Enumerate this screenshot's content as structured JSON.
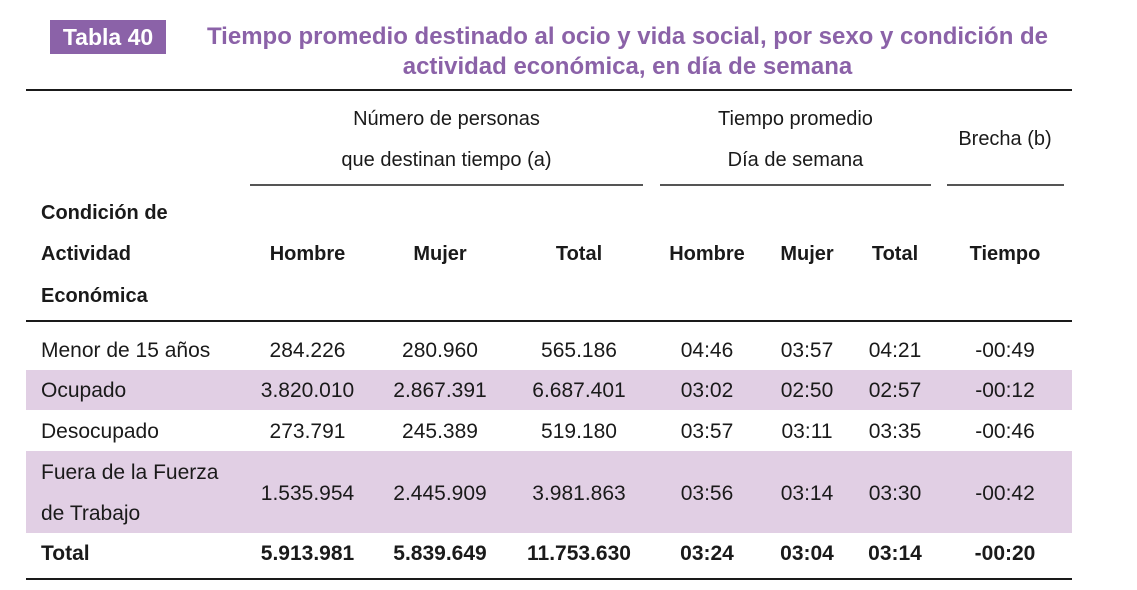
{
  "tag": "Tabla 40",
  "title": {
    "line1": "Tiempo promedio destinado al ocio y vida social, por sexo y condición de",
    "line2": "actividad económica, en día de semana"
  },
  "groups": {
    "personas": {
      "line1": "Número de personas",
      "line2": "que destinan tiempo (a)"
    },
    "tiempo": {
      "line1": "Tiempo promedio",
      "line2": "Día de semana"
    },
    "brecha": "Brecha (b)"
  },
  "columns": {
    "condicion": [
      "Condición de",
      "Actividad",
      "Económica"
    ],
    "hombre": "Hombre",
    "mujer": "Mujer",
    "total": "Total",
    "t_hombre": "Hombre",
    "t_mujer": "Mujer",
    "t_total": "Total",
    "tiempo": "Tiempo"
  },
  "rows": [
    {
      "label": [
        "Menor de 15 años"
      ],
      "hombre": "284.226",
      "mujer": "280.960",
      "total": "565.186",
      "t_hombre": "04:46",
      "t_mujer": "03:57",
      "t_total": "04:21",
      "brecha": "-00:49"
    },
    {
      "label": [
        "Ocupado"
      ],
      "hombre": "3.820.010",
      "mujer": "2.867.391",
      "total": "6.687.401",
      "t_hombre": "03:02",
      "t_mujer": "02:50",
      "t_total": "02:57",
      "brecha": "-00:12"
    },
    {
      "label": [
        "Desocupado"
      ],
      "hombre": "273.791",
      "mujer": "245.389",
      "total": "519.180",
      "t_hombre": "03:57",
      "t_mujer": "03:11",
      "t_total": "03:35",
      "brecha": "-00:46"
    },
    {
      "label": [
        "Fuera de la Fuerza",
        "de Trabajo"
      ],
      "hombre": "1.535.954",
      "mujer": "2.445.909",
      "total": "3.981.863",
      "t_hombre": "03:56",
      "t_mujer": "03:14",
      "t_total": "03:30",
      "brecha": "-00:42"
    }
  ],
  "total_row": {
    "label": "Total",
    "hombre": "5.913.981",
    "mujer": "5.839.649",
    "total": "11.753.630",
    "t_hombre": "03:24",
    "t_mujer": "03:04",
    "t_total": "03:14",
    "brecha": "-00:20"
  },
  "colors": {
    "accent": "#8b62a8",
    "band": "#e1cfe4",
    "text": "#1a1a1a"
  }
}
